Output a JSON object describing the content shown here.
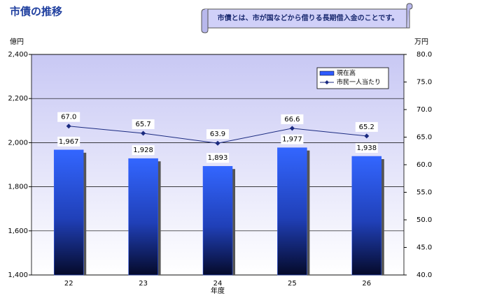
{
  "chart_data": {
    "type": "bar",
    "title": "市債の推移",
    "note": "市債とは、市が国などから借りる長期借入金のことです。",
    "ylabel": "億円",
    "y2label": "万円",
    "xlabel": "年度",
    "categories": [
      "22",
      "23",
      "24",
      "25",
      "26"
    ],
    "series": [
      {
        "name": "現在高",
        "type": "bar",
        "color": "#2f5bff",
        "values": [
          1967,
          1928,
          1893,
          1977,
          1938
        ],
        "value_labels": [
          "1,967",
          "1,928",
          "1,893",
          "1,977",
          "1,938"
        ]
      },
      {
        "name": "市民一人当たり",
        "type": "line",
        "axis": "y2",
        "color": "#1a2a80",
        "values": [
          67.0,
          65.7,
          63.9,
          66.6,
          65.2
        ],
        "value_labels": [
          "67.0",
          "65.7",
          "63.9",
          "66.6",
          "65.2"
        ]
      }
    ],
    "ylim": [
      1400,
      2400
    ],
    "yticks": [
      {
        "value": 1400,
        "label": "1,400"
      },
      {
        "value": 1600,
        "label": "1,600"
      },
      {
        "value": 1800,
        "label": "1,800"
      },
      {
        "value": 2000,
        "label": "2,000"
      },
      {
        "value": 2200,
        "label": "2,200"
      },
      {
        "value": 2400,
        "label": "2,400"
      }
    ],
    "y2lim": [
      40,
      80
    ],
    "y2ticks": [
      {
        "value": 40,
        "label": "40.0"
      },
      {
        "value": 45,
        "label": "45.0"
      },
      {
        "value": 50,
        "label": "50.0"
      },
      {
        "value": 55,
        "label": "55.0"
      },
      {
        "value": 60,
        "label": "60.0"
      },
      {
        "value": 65,
        "label": "65.0"
      },
      {
        "value": 70,
        "label": "70.0"
      },
      {
        "value": 75,
        "label": "75.0"
      },
      {
        "value": 80,
        "label": "80.0"
      }
    ],
    "grid": true,
    "legend": "upper right"
  }
}
